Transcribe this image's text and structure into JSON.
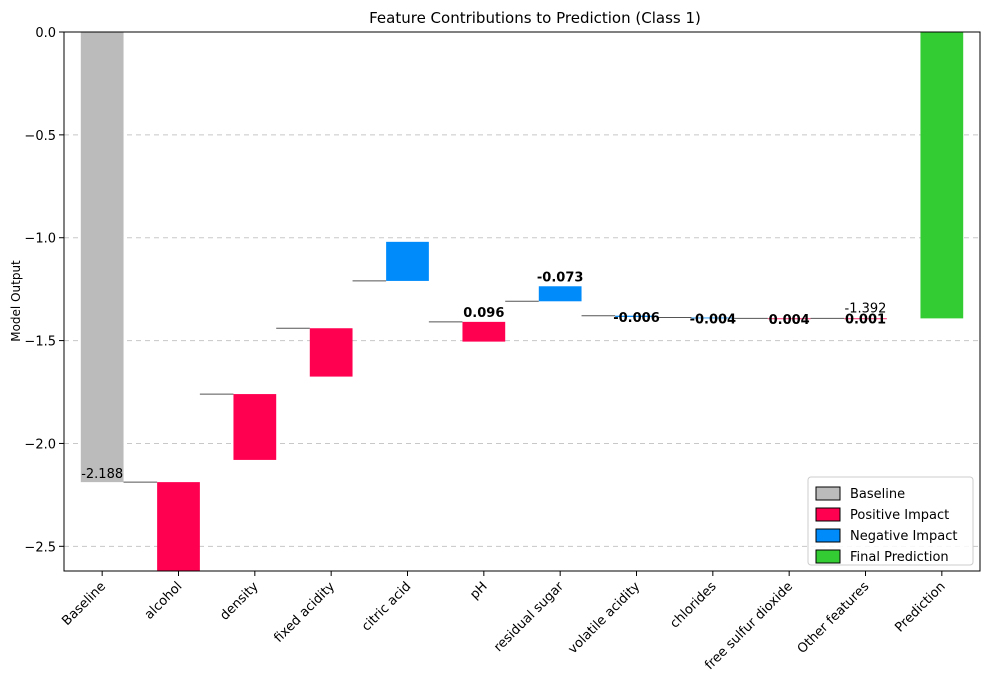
{
  "chart_data": {
    "type": "bar",
    "subtype": "waterfall",
    "title": "Feature Contributions to Prediction (Class 1)",
    "ylabel": "Model Output",
    "xlabel": "",
    "ylim": [
      -2.62,
      0.0
    ],
    "yticks": [
      0.0,
      -0.5,
      -1.0,
      -1.5,
      -2.0,
      -2.5
    ],
    "ytick_labels": [
      "0.0",
      "−0.5",
      "−1.0",
      "−1.5",
      "−2.0",
      "−2.5"
    ],
    "grid": "horizontal-dashed",
    "legend_position": "lower-right",
    "colors": {
      "baseline": "#bbbbbb",
      "positive": "#ff0051",
      "negative": "#008bfb",
      "final": "#33cc33"
    },
    "legend": [
      {
        "label": "Baseline",
        "kind": "baseline"
      },
      {
        "label": "Positive Impact",
        "kind": "positive"
      },
      {
        "label": "Negative Impact",
        "kind": "negative"
      },
      {
        "label": "Final Prediction",
        "kind": "final"
      }
    ],
    "bars": [
      {
        "category": "Baseline",
        "kind": "baseline",
        "bottom": -2.188,
        "top": 0.0,
        "label": "-2.188",
        "bold": false
      },
      {
        "category": "alcohol",
        "kind": "positive",
        "bottom": -2.62,
        "top": -2.188,
        "label": "",
        "bold": false
      },
      {
        "category": "density",
        "kind": "positive",
        "bottom": -2.08,
        "top": -1.76,
        "label": "",
        "bold": false
      },
      {
        "category": "fixed acidity",
        "kind": "positive",
        "bottom": -1.675,
        "top": -1.44,
        "label": "",
        "bold": false
      },
      {
        "category": "citric acid",
        "kind": "negative",
        "bottom": -1.21,
        "top": -1.02,
        "label": "",
        "bold": false
      },
      {
        "category": "pH",
        "kind": "positive",
        "bottom": -1.505,
        "top": -1.409,
        "label": "0.096",
        "bold": true
      },
      {
        "category": "residual sugar",
        "kind": "negative",
        "bottom": -1.309,
        "top": -1.236,
        "label": "-0.073",
        "bold": true
      },
      {
        "category": "volatile acidity",
        "kind": "negative",
        "bottom": -1.385,
        "top": -1.379,
        "label": "-0.006",
        "bold": true
      },
      {
        "category": "chlorides",
        "kind": "negative",
        "bottom": -1.392,
        "top": -1.388,
        "label": "-0.004",
        "bold": true
      },
      {
        "category": "free sulfur dioxide",
        "kind": "positive",
        "bottom": -1.396,
        "top": -1.392,
        "label": "0.004",
        "bold": true
      },
      {
        "category": "Other features",
        "kind": "positive",
        "bottom": -1.393,
        "top": -1.392,
        "label": "0.001",
        "bold": true
      },
      {
        "category": "Prediction",
        "kind": "final",
        "bottom": -1.392,
        "top": 0.0,
        "label": "",
        "bold": false
      }
    ],
    "connectors": [
      {
        "from": "Baseline",
        "to": "alcohol",
        "y": -2.188
      },
      {
        "from": "alcohol",
        "to": "density",
        "y": -1.76
      },
      {
        "from": "density",
        "to": "fixed acidity",
        "y": -1.44
      },
      {
        "from": "fixed acidity",
        "to": "citric acid",
        "y": -1.21
      },
      {
        "from": "citric acid",
        "to": "pH",
        "y": -1.409
      },
      {
        "from": "pH",
        "to": "residual sugar",
        "y": -1.309
      },
      {
        "from": "residual sugar",
        "to": "volatile acidity",
        "y": -1.379
      },
      {
        "from": "volatile acidity",
        "to": "chlorides",
        "y": -1.388
      },
      {
        "from": "chlorides",
        "to": "free sulfur dioxide",
        "y": -1.392
      },
      {
        "from": "free sulfur dioxide",
        "to": "Other features",
        "y": -1.392
      }
    ],
    "annotations": [
      {
        "text": "-1.392",
        "category": "Other features",
        "y": -1.392
      }
    ]
  }
}
